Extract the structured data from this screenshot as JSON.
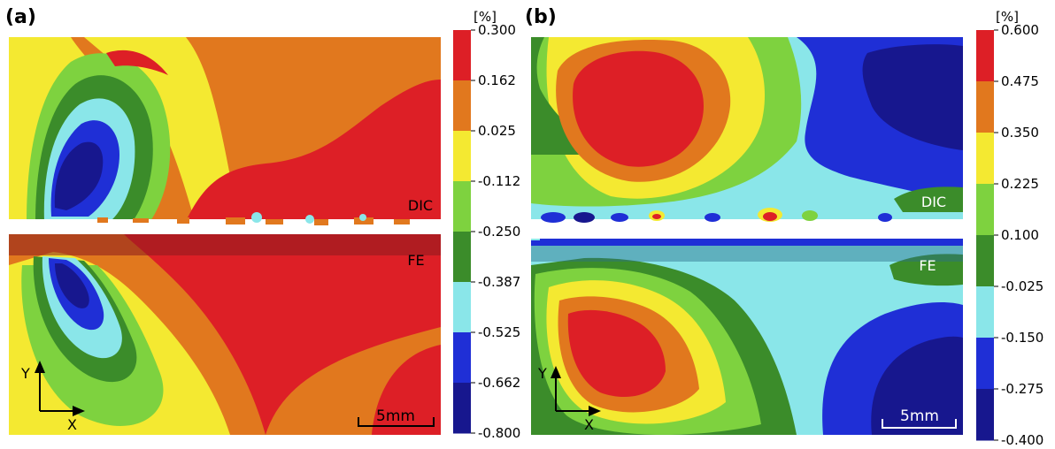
{
  "panels": [
    {
      "id": "a",
      "label": "(a)",
      "unit": "[%]",
      "ticks": [
        "0.300",
        "0.162",
        "0.025",
        "-0.112",
        "-0.250",
        "-0.387",
        "-0.525",
        "-0.662",
        "-0.800"
      ],
      "top_tag": "DIC",
      "bottom_tag": "FE",
      "axis_y": "Y",
      "axis_x": "X",
      "scale_text": "5mm"
    },
    {
      "id": "b",
      "label": "(b)",
      "unit": "[%]",
      "ticks": [
        "0.600",
        "0.475",
        "0.350",
        "0.225",
        "0.100",
        "-0.025",
        "-0.150",
        "-0.275",
        "-0.400"
      ],
      "top_tag": "DIC",
      "bottom_tag": "FE",
      "axis_y": "Y",
      "axis_x": "X",
      "scale_text": "5mm"
    }
  ],
  "colormap": [
    "#dd1f26",
    "#e1781e",
    "#f4e931",
    "#7ed23f",
    "#3b8c2a",
    "#8ae6e9",
    "#1f2fd6",
    "#17178e"
  ]
}
